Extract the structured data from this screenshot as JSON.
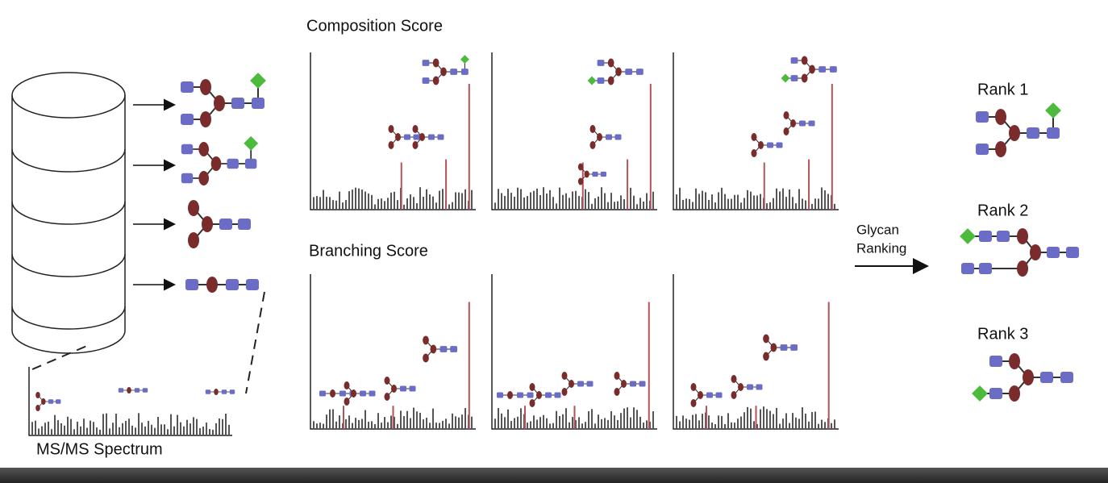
{
  "labels": {
    "composition": "Composition Score",
    "branching": "Branching Score",
    "spectrum": "MS/MS Spectrum",
    "ranking": [
      "Glycan",
      "Ranking"
    ]
  },
  "ranks": [
    "Rank 1",
    "Rank 2",
    "Rank 3"
  ]
}
